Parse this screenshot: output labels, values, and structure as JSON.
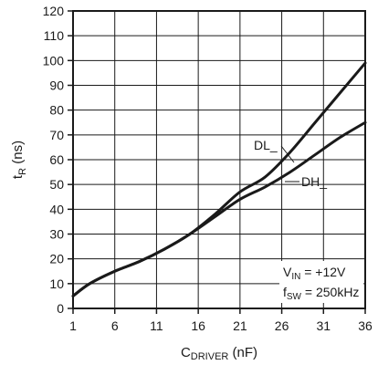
{
  "chart_data": {
    "type": "line",
    "xlabel": "C_DRIVER (nF)",
    "xlabel_main": "C",
    "xlabel_sub": "DRIVER",
    "xlabel_unit": " (nF)",
    "ylabel_main": "t",
    "ylabel_sub": "R",
    "ylabel_unit": " (ns)",
    "xlim": [
      1,
      36
    ],
    "ylim": [
      0,
      120
    ],
    "x_ticks": [
      1,
      6,
      11,
      16,
      21,
      26,
      31,
      36
    ],
    "y_ticks": [
      0,
      10,
      20,
      30,
      40,
      50,
      60,
      70,
      80,
      90,
      100,
      110,
      120
    ],
    "grid": true,
    "series": [
      {
        "name": "DL_",
        "x": [
          1,
          3,
          6,
          9,
          12,
          15,
          18,
          21,
          24,
          27,
          30,
          33,
          36
        ],
        "y": [
          5,
          10,
          15,
          19,
          24,
          30,
          38,
          47,
          53,
          63,
          75,
          87,
          99
        ]
      },
      {
        "name": "DH_",
        "x": [
          1,
          3,
          6,
          9,
          12,
          15,
          18,
          21,
          24,
          27,
          30,
          33,
          36
        ],
        "y": [
          5,
          10,
          15,
          19,
          24,
          30,
          37,
          44,
          49,
          55,
          62,
          69,
          75
        ]
      }
    ],
    "annotations": {
      "vin_main": "V",
      "vin_sub": "IN",
      "vin_value": " = +12V",
      "fsw_main": "f",
      "fsw_sub": "SW",
      "fsw_value": " = 250kHz"
    }
  }
}
